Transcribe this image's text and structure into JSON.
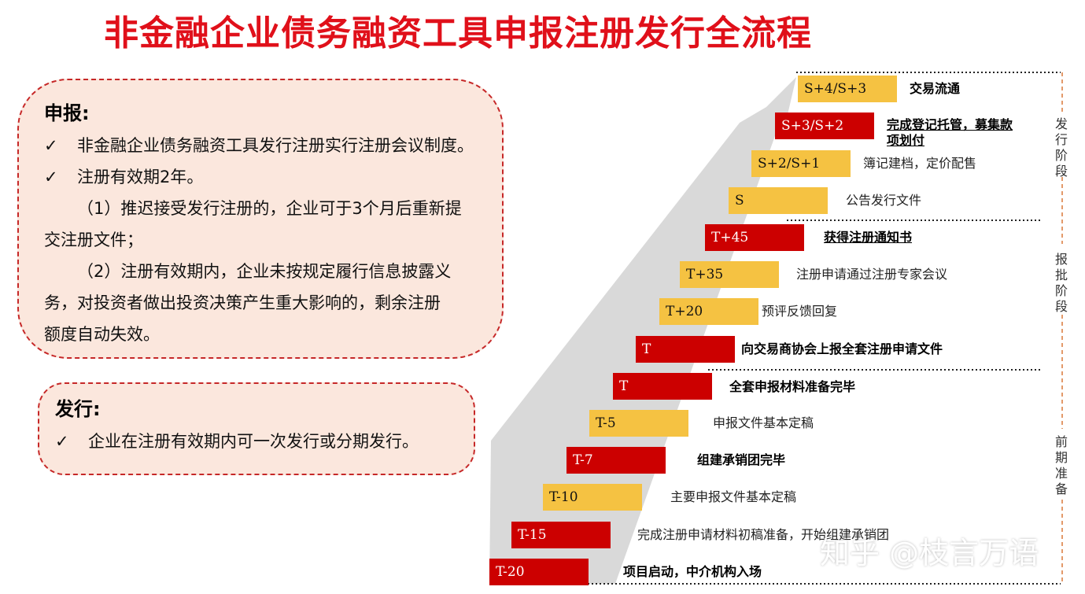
{
  "title": "非金融企业债务融资工具申报注册发行全流程",
  "box_apply": {
    "heading": "申报:",
    "check1": "非金融企业债务融资工具发行注册实行注册会议制度。",
    "check2": "注册有效期2年。",
    "para1_line1": "（1）推迟接受发行注册的，企业可于3个月后重新提",
    "para1_line2": "交注册文件；",
    "para2_line1": "（2）注册有效期内，企业未按规定履行信息披露义",
    "para2_line2": "务，对投资者做出投资决策产生重大影响的，剩余注册",
    "para2_line3": "额度自动失效。"
  },
  "box_issue": {
    "heading": "发行:",
    "check1": "企业在注册有效期内可一次发行或分期发行。"
  },
  "check_mark": "✓",
  "steps": [
    {
      "code": "S+4/S+3",
      "color": "yellow",
      "desc": "交易流通",
      "desc2": "",
      "bold": true,
      "underline": false
    },
    {
      "code": "S+3/S+2",
      "color": "red",
      "desc": "完成登记托管，募集款",
      "desc2": "项划付",
      "bold": true,
      "underline": true
    },
    {
      "code": "S+2/S+1",
      "color": "yellow",
      "desc": "簿记建档，定价配售",
      "desc2": "",
      "bold": false,
      "underline": false
    },
    {
      "code": "S",
      "color": "yellow",
      "desc": "公告发行文件",
      "desc2": "",
      "bold": false,
      "underline": false
    },
    {
      "code": "T+45",
      "color": "red",
      "desc": "获得注册通知书",
      "desc2": "",
      "bold": true,
      "underline": true
    },
    {
      "code": "T+35",
      "color": "yellow",
      "desc": "注册申请通过注册专家会议",
      "desc2": "",
      "bold": false,
      "underline": false
    },
    {
      "code": "T+20",
      "color": "yellow",
      "desc": "预评反馈回复",
      "desc2": "",
      "bold": false,
      "underline": false
    },
    {
      "code": "T",
      "color": "red",
      "desc": "向交易商协会上报全套注册申请文件",
      "desc2": "",
      "bold": true,
      "underline": false
    },
    {
      "code": "T",
      "color": "red",
      "desc": "全套申报材料准备完毕",
      "desc2": "",
      "bold": true,
      "underline": false
    },
    {
      "code": "T-5",
      "color": "yellow",
      "desc": "申报文件基本定稿",
      "desc2": "",
      "bold": false,
      "underline": false
    },
    {
      "code": "T-7",
      "color": "red",
      "desc": "组建承销团完毕",
      "desc2": "",
      "bold": true,
      "underline": false
    },
    {
      "code": "T-10",
      "color": "yellow",
      "desc": "主要申报文件基本定稿",
      "desc2": "",
      "bold": false,
      "underline": false
    },
    {
      "code": "T-15",
      "color": "red",
      "desc": "完成注册申请材料初稿准备，开始组建承销团",
      "desc2": "",
      "bold": false,
      "underline": false
    },
    {
      "code": "T-20",
      "color": "red",
      "desc": "项目启动，中介机构入场",
      "desc2": "",
      "bold": true,
      "underline": false
    }
  ],
  "phases": [
    "发行阶段",
    "报批阶段",
    "前期准备"
  ],
  "colors": {
    "red": "#cc0000",
    "yellow": "#f5c242",
    "title": "#e0101a"
  },
  "watermark": "知乎 @枝言万语"
}
